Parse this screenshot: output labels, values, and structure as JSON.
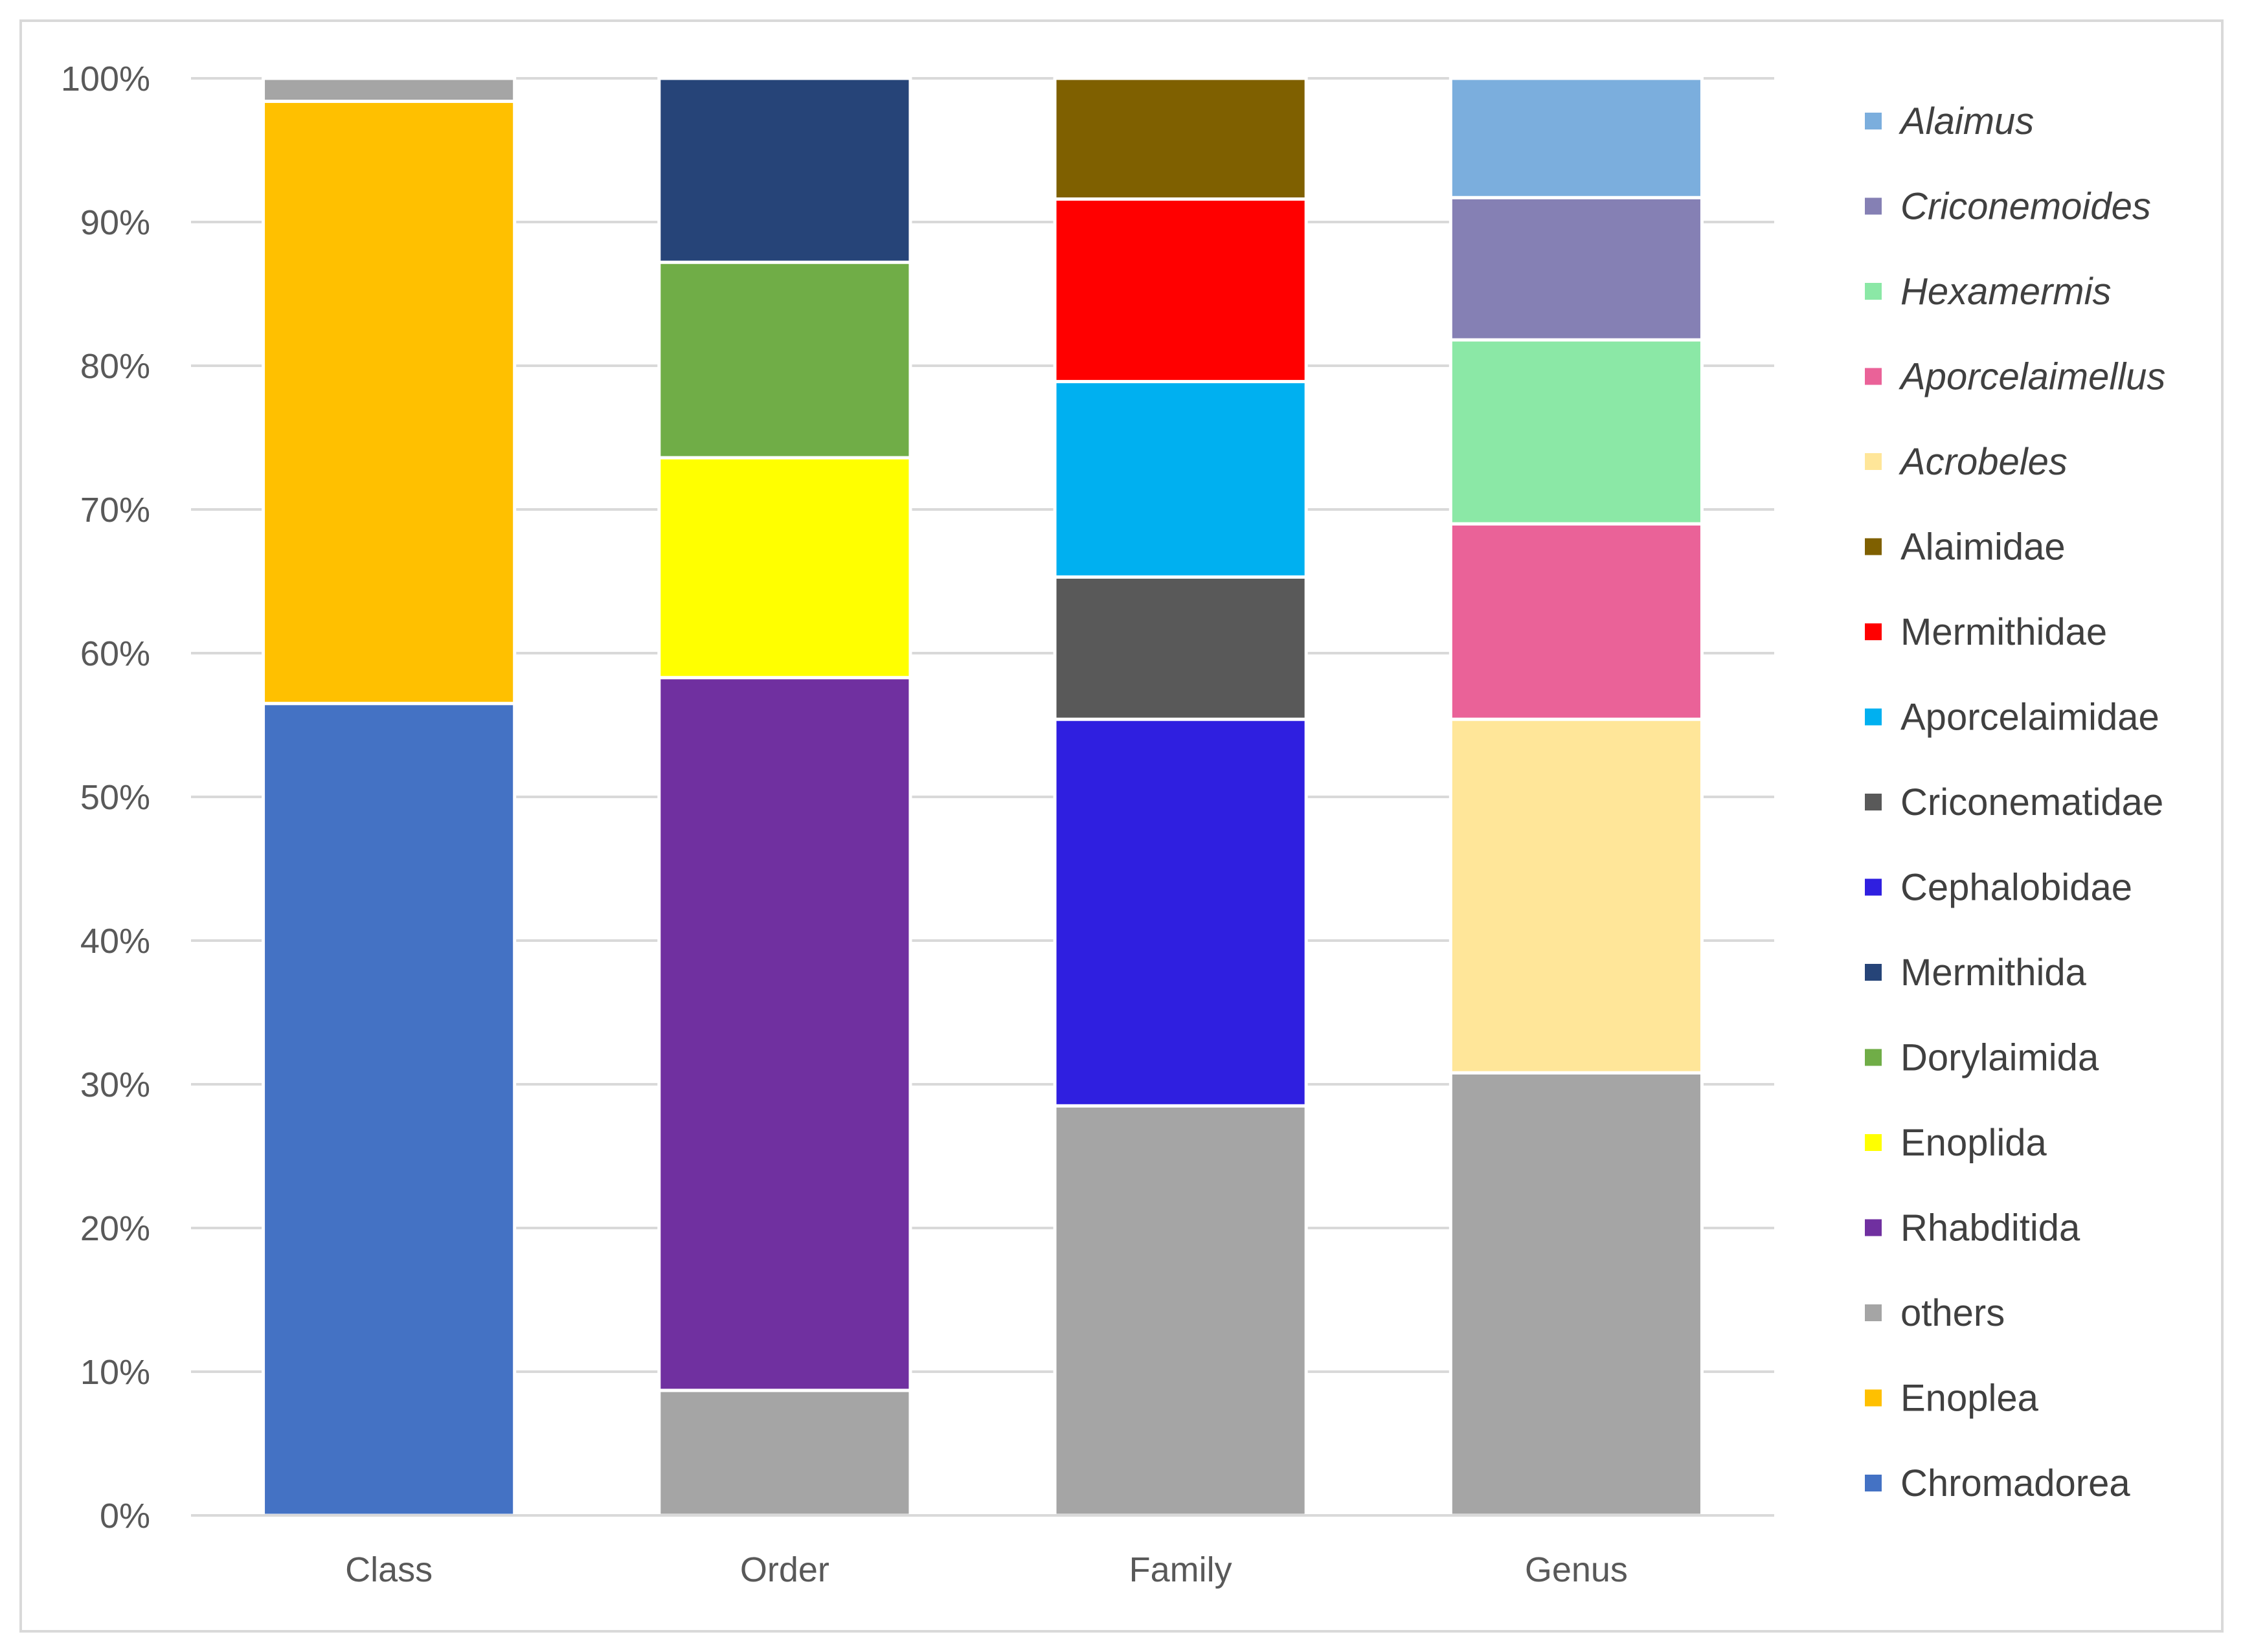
{
  "chart_data": {
    "type": "bar",
    "stacked": true,
    "percent_scale": true,
    "categories": [
      "Class",
      "Order",
      "Family",
      "Genus"
    ],
    "y_ticks": [
      "0%",
      "10%",
      "20%",
      "30%",
      "40%",
      "50%",
      "60%",
      "70%",
      "80%",
      "90%",
      "100%"
    ],
    "ylim": [
      0,
      100
    ],
    "grid": true,
    "legend_position": "right",
    "series": [
      {
        "name": "Chromadorea",
        "color": "#4472C4",
        "italic": false,
        "values": [
          56.5,
          0,
          0,
          0
        ]
      },
      {
        "name": "Enoplea",
        "color": "#FFC000",
        "italic": false,
        "values": [
          41.9,
          0,
          0,
          0
        ]
      },
      {
        "name": "others",
        "color": "#A5A5A5",
        "italic": false,
        "values": [
          1.6,
          8.7,
          28.5,
          30.8
        ]
      },
      {
        "name": "Rhabditida",
        "color": "#7030A0",
        "italic": false,
        "values": [
          0,
          49.6,
          0,
          0
        ]
      },
      {
        "name": "Enoplida",
        "color": "#FFFF00",
        "italic": false,
        "values": [
          0,
          15.3,
          0,
          0
        ]
      },
      {
        "name": "Dorylaimida",
        "color": "#70AD47",
        "italic": false,
        "values": [
          0,
          13.6,
          0,
          0
        ]
      },
      {
        "name": "Mermithida",
        "color": "#264478",
        "italic": false,
        "values": [
          0,
          12.8,
          0,
          0
        ]
      },
      {
        "name": "Cephalobidae",
        "color": "#2F1FE0",
        "italic": false,
        "values": [
          0,
          0,
          26.9,
          0
        ]
      },
      {
        "name": "Criconematidae",
        "color": "#595959",
        "italic": false,
        "values": [
          0,
          0,
          9.9,
          0
        ]
      },
      {
        "name": "Aporcelaimidae",
        "color": "#00B0F0",
        "italic": false,
        "values": [
          0,
          0,
          13.6,
          0
        ]
      },
      {
        "name": "Mermithidae",
        "color": "#FF0000",
        "italic": false,
        "values": [
          0,
          0,
          12.7,
          0
        ]
      },
      {
        "name": "Alaimidae",
        "color": "#7F6000",
        "italic": false,
        "values": [
          0,
          0,
          8.4,
          0
        ]
      },
      {
        "name": "Acrobeles",
        "color": "#FFE699",
        "italic": true,
        "values": [
          0,
          0,
          0,
          24.6
        ]
      },
      {
        "name": "Aporcelaimellus",
        "color": "#EA6298",
        "italic": true,
        "values": [
          0,
          0,
          0,
          13.6
        ]
      },
      {
        "name": "Hexamermis",
        "color": "#8BE8A6",
        "italic": true,
        "values": [
          0,
          0,
          0,
          12.8
        ]
      },
      {
        "name": "Criconemoides",
        "color": "#8580B4",
        "italic": true,
        "values": [
          0,
          0,
          0,
          9.9
        ]
      },
      {
        "name": "Alaimus",
        "color": "#7BAEDD",
        "italic": true,
        "values": [
          0,
          0,
          0,
          8.3
        ]
      }
    ],
    "colors": {
      "gridline": "#d9d9d9",
      "axis_line": "#d9d9d9",
      "tick_text": "#595959",
      "legend_text": "#404040"
    }
  }
}
